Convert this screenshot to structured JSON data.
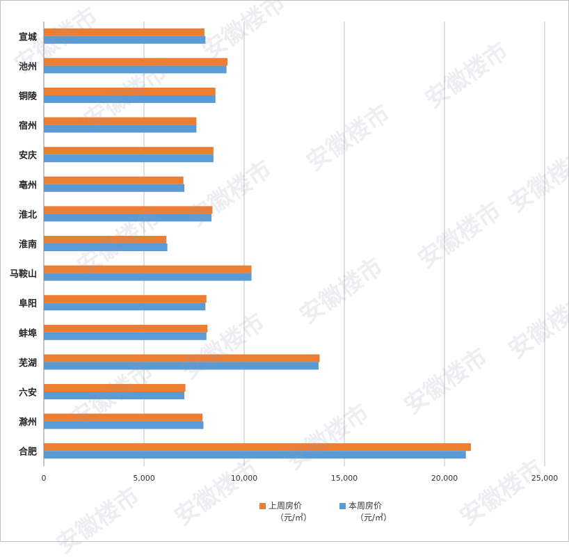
{
  "chart_data": {
    "type": "bar",
    "orientation": "horizontal",
    "categories": [
      "宣城",
      "池州",
      "铜陵",
      "宿州",
      "安庆",
      "亳州",
      "淮北",
      "淮南",
      "马鞍山",
      "阜阳",
      "蚌埠",
      "芜湖",
      "六安",
      "滁州",
      "合肥"
    ],
    "series": [
      {
        "name": "上周房价",
        "unit": "（元/㎡）",
        "color": "#ED7D31",
        "values": [
          8000,
          9150,
          8550,
          7600,
          8450,
          6950,
          8400,
          6100,
          10350,
          8100,
          8150,
          13750,
          7050,
          7900,
          21300
        ]
      },
      {
        "name": "本周房价",
        "unit": "（元/㎡）",
        "color": "#5B9BD5",
        "values": [
          8050,
          9100,
          8550,
          7600,
          8450,
          7000,
          8350,
          6150,
          10350,
          8050,
          8100,
          13700,
          7000,
          7950,
          21050
        ]
      }
    ],
    "xlim": [
      0,
      25000
    ],
    "xticks": [
      "0",
      "5,000",
      "10,000",
      "15,000",
      "20,000",
      "25,000"
    ],
    "grid": true,
    "legend_position": "bottom"
  },
  "watermark": {
    "text": "安徽楼市"
  }
}
